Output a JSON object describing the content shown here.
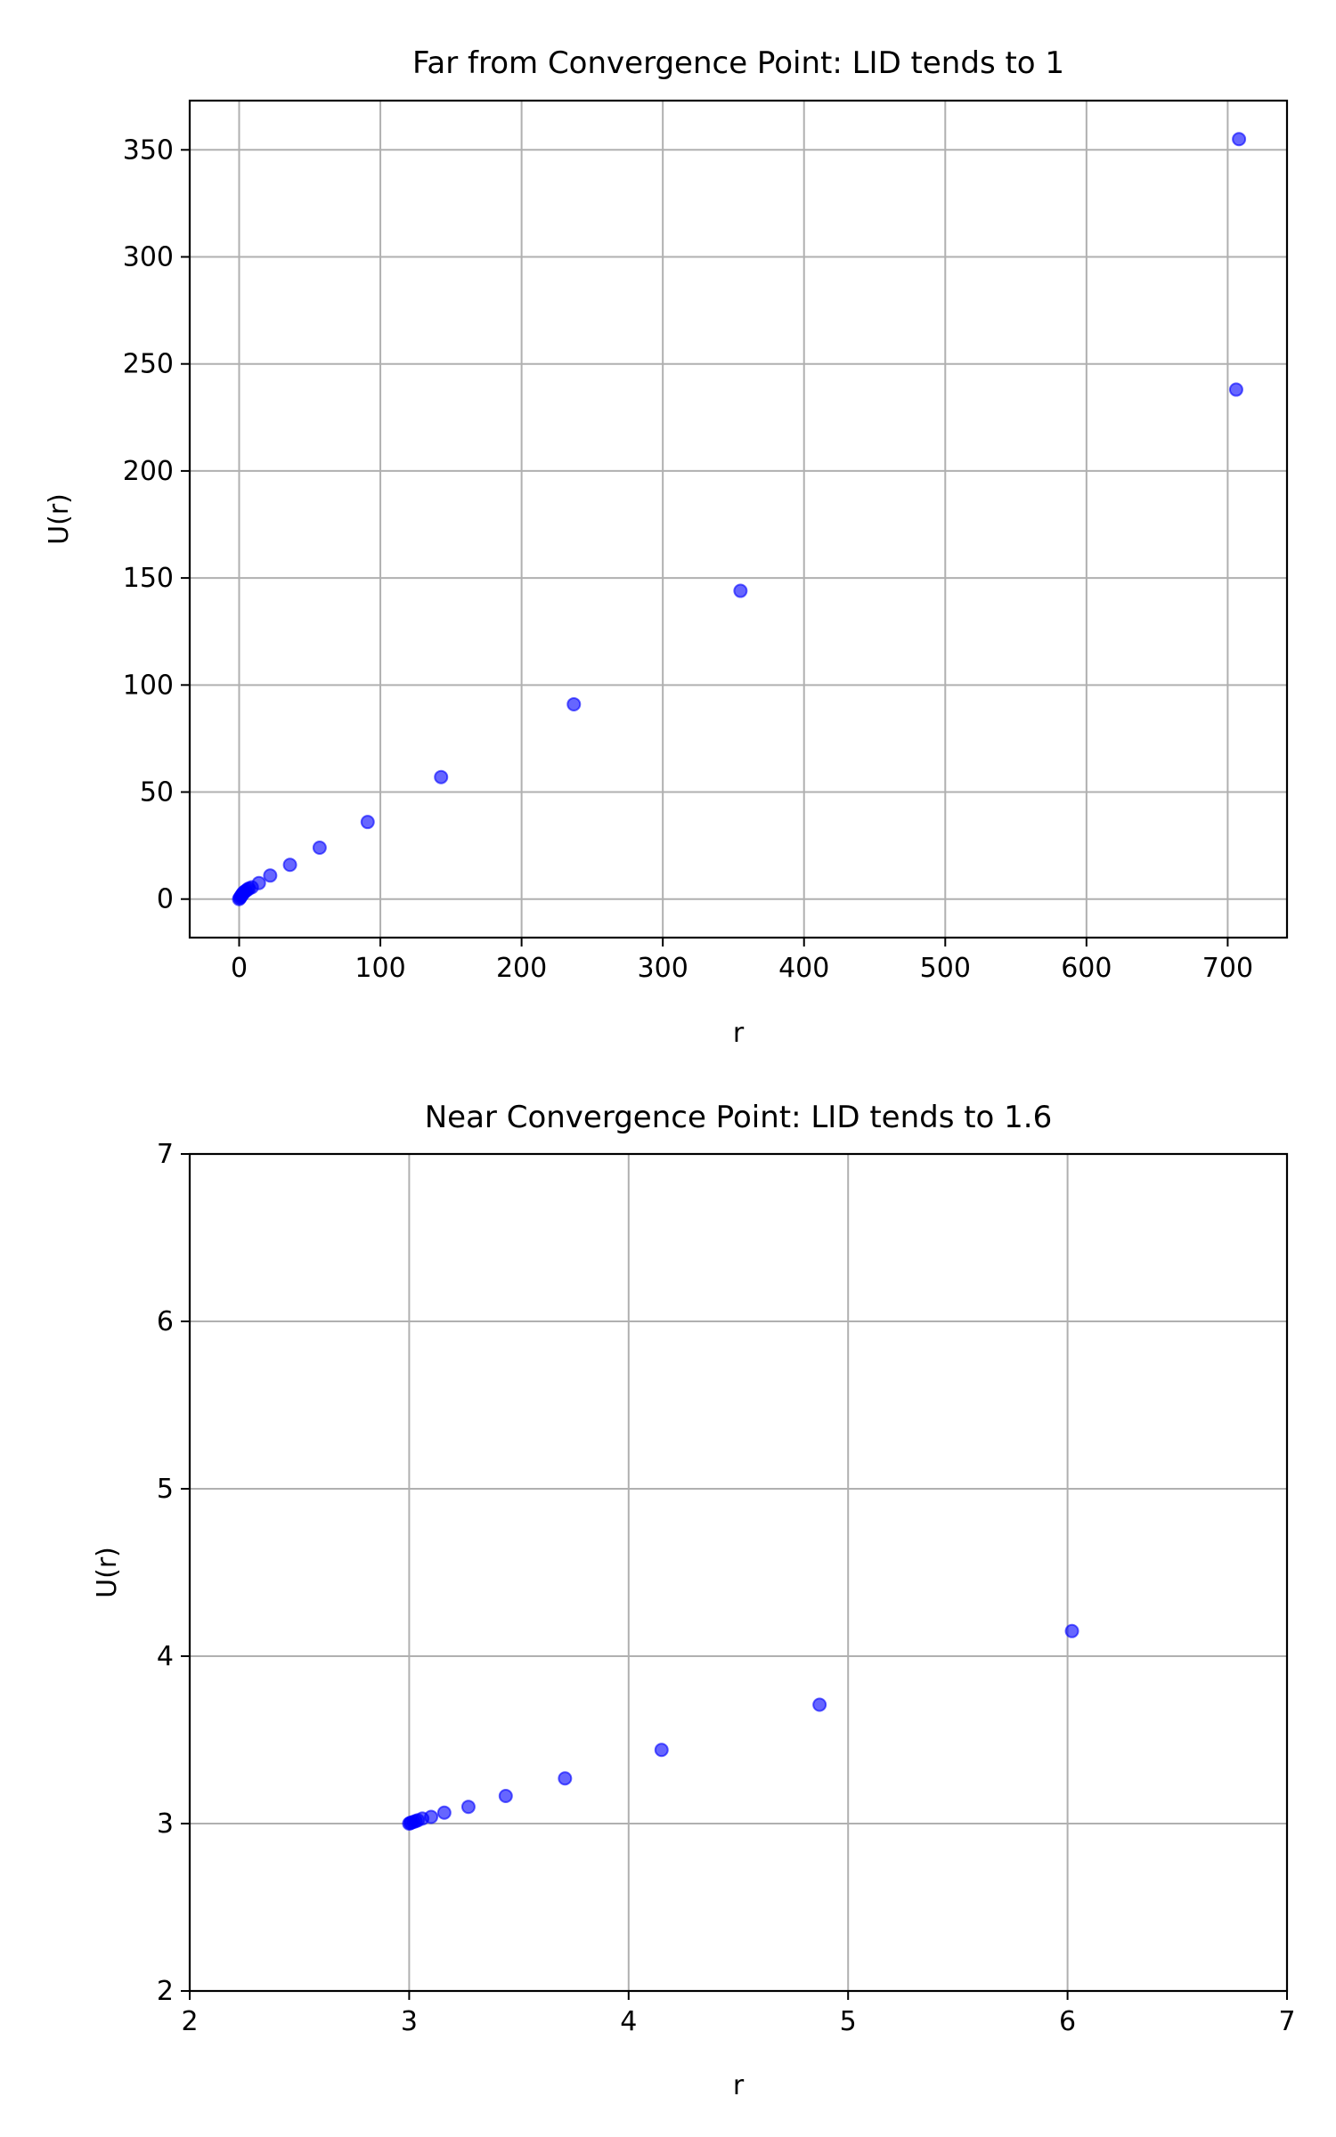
{
  "colors": {
    "marker_face": "#0000ff",
    "marker_edge": "#0000ff",
    "grid": "#b0b0b0",
    "axes": "#000000",
    "background": "#ffffff"
  },
  "chart_data": [
    {
      "type": "scatter",
      "title": "Far from Convergence Point: LID tends to 1",
      "xlabel": "r",
      "ylabel": "U(r)",
      "xlim": [
        -35,
        742
      ],
      "ylim": [
        -18,
        373
      ],
      "xticks": [
        0,
        100,
        200,
        300,
        400,
        500,
        600,
        700
      ],
      "yticks": [
        0,
        50,
        100,
        150,
        200,
        250,
        300,
        350
      ],
      "xtick_labels": [
        "0",
        "100",
        "200",
        "300",
        "400",
        "500",
        "600",
        "700"
      ],
      "ytick_labels": [
        "0",
        "50",
        "100",
        "150",
        "200",
        "250",
        "300",
        "350"
      ],
      "grid": true,
      "marker_alpha": 0.6,
      "series": [
        {
          "x": [
            0,
            0.5,
            1,
            1.5,
            2,
            2.5,
            3,
            4,
            5,
            6,
            7,
            9,
            14,
            22,
            36,
            57,
            91,
            143,
            237,
            355,
            706,
            708
          ],
          "y": [
            0,
            0.5,
            1,
            1.5,
            2,
            2.4,
            3,
            3.5,
            4,
            4.5,
            5,
            5.5,
            7.5,
            11,
            16,
            24,
            36,
            57,
            91,
            144,
            238,
            355
          ]
        }
      ]
    },
    {
      "type": "scatter",
      "title": "Near Convergence Point: LID tends to 1.6",
      "xlabel": "r",
      "ylabel": "U(r)",
      "xlim": [
        2,
        7
      ],
      "ylim": [
        2,
        7
      ],
      "xticks": [
        2,
        3,
        4,
        5,
        6,
        7
      ],
      "yticks": [
        2,
        3,
        4,
        5,
        6,
        7
      ],
      "xtick_labels": [
        "2",
        "3",
        "4",
        "5",
        "6",
        "7"
      ],
      "ytick_labels": [
        "2",
        "3",
        "4",
        "5",
        "6",
        "7"
      ],
      "grid": true,
      "marker_alpha": 0.6,
      "series": [
        {
          "x": [
            3.0,
            3.005,
            3.01,
            3.02,
            3.03,
            3.04,
            3.06,
            3.1,
            3.16,
            3.27,
            3.44,
            3.71,
            4.15,
            4.87,
            6.02
          ],
          "y": [
            3.0,
            3.003,
            3.006,
            3.01,
            3.015,
            3.02,
            3.03,
            3.04,
            3.065,
            3.1,
            3.165,
            3.27,
            3.44,
            3.71,
            4.15
          ]
        }
      ]
    }
  ]
}
